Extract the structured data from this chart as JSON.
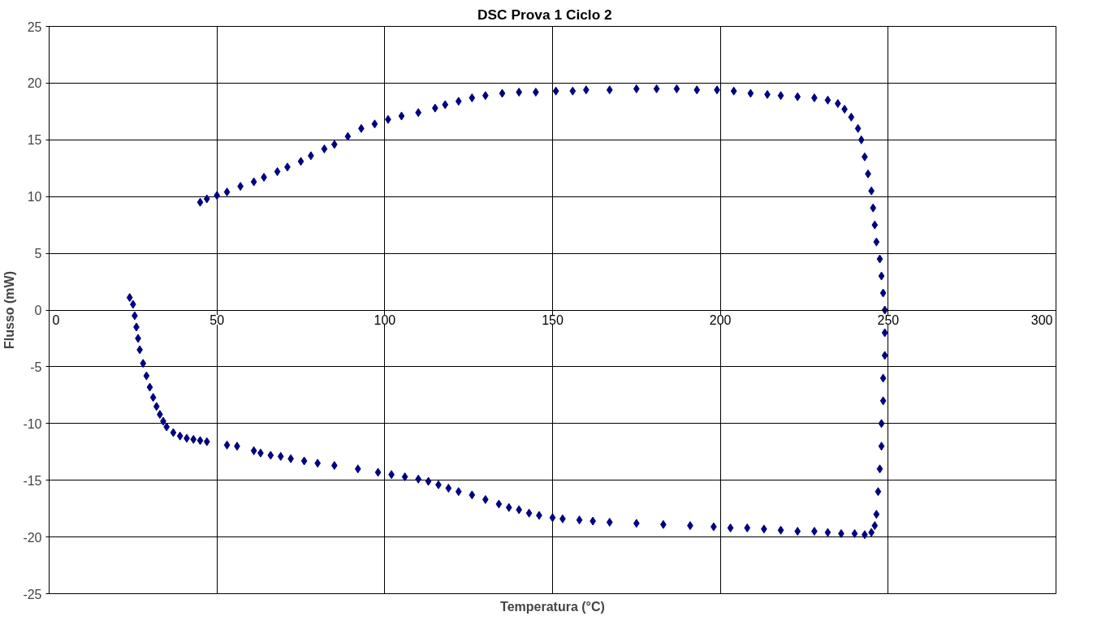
{
  "chart_data": {
    "type": "scatter",
    "title": "DSC   Prova 1   Ciclo 2",
    "xlabel": "Temperatura (°C)",
    "ylabel": "Flusso (mW)",
    "xlim": [
      0,
      300
    ],
    "xticks": [
      0,
      50,
      100,
      150,
      200,
      250,
      300
    ],
    "ylim": [
      -25,
      25
    ],
    "yticks": [
      -25,
      -20,
      -15,
      -10,
      -5,
      0,
      5,
      10,
      15,
      20,
      25
    ],
    "grid": true,
    "marker": "diamond",
    "series": [
      {
        "color": "#000080",
        "x": [
          24,
          25,
          25.5,
          26,
          26.5,
          27,
          28,
          29,
          30,
          31,
          32,
          33,
          34,
          35,
          37,
          39,
          41,
          43,
          45,
          47,
          53,
          56,
          61,
          63,
          66,
          69,
          72,
          76,
          80,
          85,
          92,
          98,
          102,
          106,
          110,
          113,
          116,
          119,
          122,
          126,
          130,
          134,
          137,
          140,
          143,
          146,
          150,
          153,
          158,
          162,
          167,
          175,
          183,
          191,
          198,
          203,
          208,
          213,
          218,
          223,
          228,
          232,
          236,
          240,
          243,
          245,
          246,
          246.5,
          247,
          247.5,
          248,
          248,
          248.5,
          248.5,
          249,
          249,
          249,
          248.5,
          248,
          247.5,
          246.5,
          246,
          245.5,
          245,
          244,
          243,
          242,
          241,
          239,
          237,
          235,
          232,
          228,
          223,
          218,
          214,
          209,
          204,
          199,
          193,
          187,
          181,
          175,
          167,
          160,
          156,
          151,
          145,
          140,
          135,
          130,
          126,
          122,
          118,
          115,
          110,
          105,
          101,
          97,
          93,
          89,
          85,
          82,
          78,
          75,
          71,
          68,
          64,
          61,
          57,
          53,
          50,
          47,
          45
        ],
        "values": [
          1.1,
          0.5,
          -0.5,
          -1.5,
          -2.5,
          -3.5,
          -4.7,
          -5.8,
          -6.8,
          -7.7,
          -8.5,
          -9.2,
          -9.8,
          -10.3,
          -10.8,
          -11.1,
          -11.3,
          -11.4,
          -11.5,
          -11.6,
          -11.9,
          -12.0,
          -12.4,
          -12.6,
          -12.8,
          -12.9,
          -13.1,
          -13.3,
          -13.5,
          -13.7,
          -14.0,
          -14.3,
          -14.5,
          -14.7,
          -14.9,
          -15.1,
          -15.4,
          -15.7,
          -16.0,
          -16.3,
          -16.7,
          -17.1,
          -17.4,
          -17.6,
          -17.9,
          -18.1,
          -18.3,
          -18.4,
          -18.5,
          -18.6,
          -18.7,
          -18.8,
          -18.9,
          -19.0,
          -19.1,
          -19.2,
          -19.2,
          -19.3,
          -19.4,
          -19.5,
          -19.5,
          -19.6,
          -19.7,
          -19.7,
          -19.8,
          -19.6,
          -19,
          -18,
          -16,
          -14,
          -12,
          -10,
          -8,
          -6,
          -4,
          -2,
          0,
          1.5,
          3,
          4.5,
          6,
          7.5,
          9,
          10.5,
          12,
          13.5,
          15,
          16,
          17,
          17.7,
          18.2,
          18.5,
          18.7,
          18.8,
          18.9,
          19.0,
          19.1,
          19.3,
          19.4,
          19.4,
          19.5,
          19.5,
          19.5,
          19.4,
          19.4,
          19.3,
          19.3,
          19.2,
          19.2,
          19.1,
          18.9,
          18.7,
          18.4,
          18.1,
          17.8,
          17.4,
          17.1,
          16.8,
          16.4,
          16.0,
          15.3,
          14.6,
          14.2,
          13.6,
          13.1,
          12.6,
          12.2,
          11.7,
          11.3,
          10.9,
          10.4,
          10.1,
          9.8,
          9.5
        ]
      }
    ]
  }
}
